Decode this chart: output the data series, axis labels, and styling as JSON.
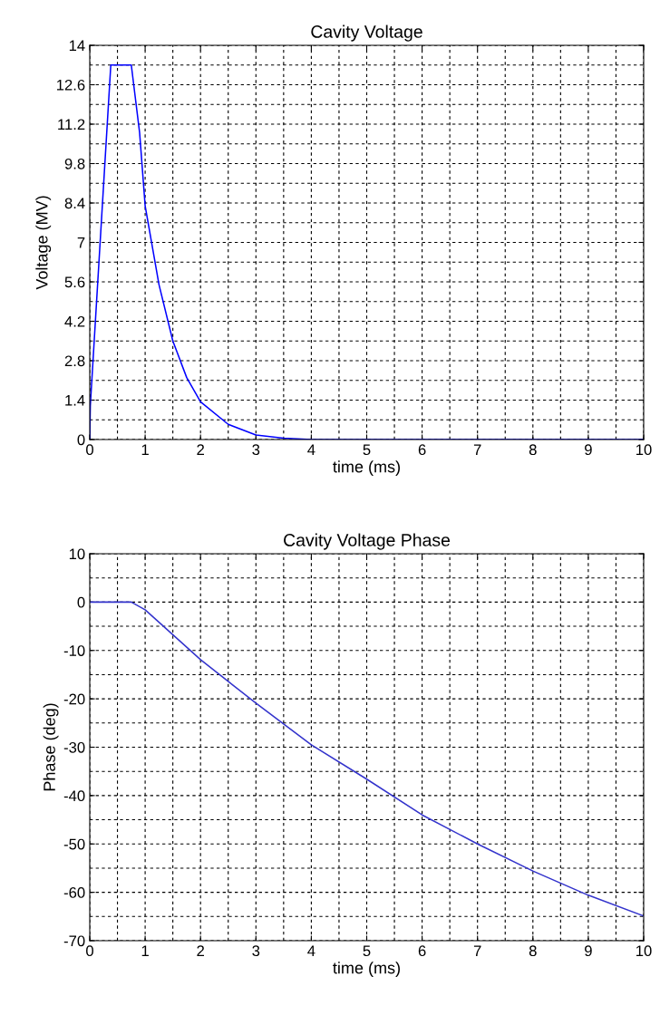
{
  "chart_data": [
    {
      "type": "line",
      "title": "Cavity Voltage",
      "xlabel": "time (ms)",
      "ylabel": "Voltage (MV)",
      "series": [
        {
          "color": "#0000ff",
          "x": [
            0,
            0.01,
            0.38,
            0.75,
            0.9,
            1,
            1.25,
            1.5,
            1.75,
            2,
            2.5,
            3,
            3.5,
            4,
            10
          ],
          "values": [
            0,
            1.2,
            13.3,
            13.3,
            10.9,
            8.3,
            5.5,
            3.5,
            2.2,
            1.34,
            0.54,
            0.16,
            0.05,
            0,
            0
          ]
        }
      ],
      "xlim": [
        0,
        10
      ],
      "xticks": [
        0,
        1,
        2,
        3,
        4,
        5,
        6,
        7,
        8,
        9,
        10
      ],
      "ylim": [
        0,
        14
      ],
      "yticks": [
        0,
        1.4,
        2.8,
        4.2,
        5.6,
        7,
        8.4,
        9.8,
        11.2,
        12.6,
        14
      ],
      "grid": true
    },
    {
      "type": "line",
      "title": "Cavity Voltage Phase",
      "xlabel": "time (ms)",
      "ylabel": "Phase (deg)",
      "series": [
        {
          "color": "#3333cc",
          "x": [
            0,
            0.75,
            1,
            2,
            3,
            4,
            5,
            6,
            7,
            8,
            9,
            10
          ],
          "values": [
            0,
            0,
            -1.6,
            -11.9,
            -20.9,
            -29.5,
            -36.6,
            -44,
            -50,
            -55.6,
            -60.6,
            -64.9
          ]
        }
      ],
      "xlim": [
        0,
        10
      ],
      "xticks": [
        0,
        1,
        2,
        3,
        4,
        5,
        6,
        7,
        8,
        9,
        10
      ],
      "ylim": [
        -70,
        10
      ],
      "yticks": [
        -70,
        -60,
        -50,
        -40,
        -30,
        -20,
        -10,
        0,
        10
      ],
      "grid": true
    }
  ]
}
